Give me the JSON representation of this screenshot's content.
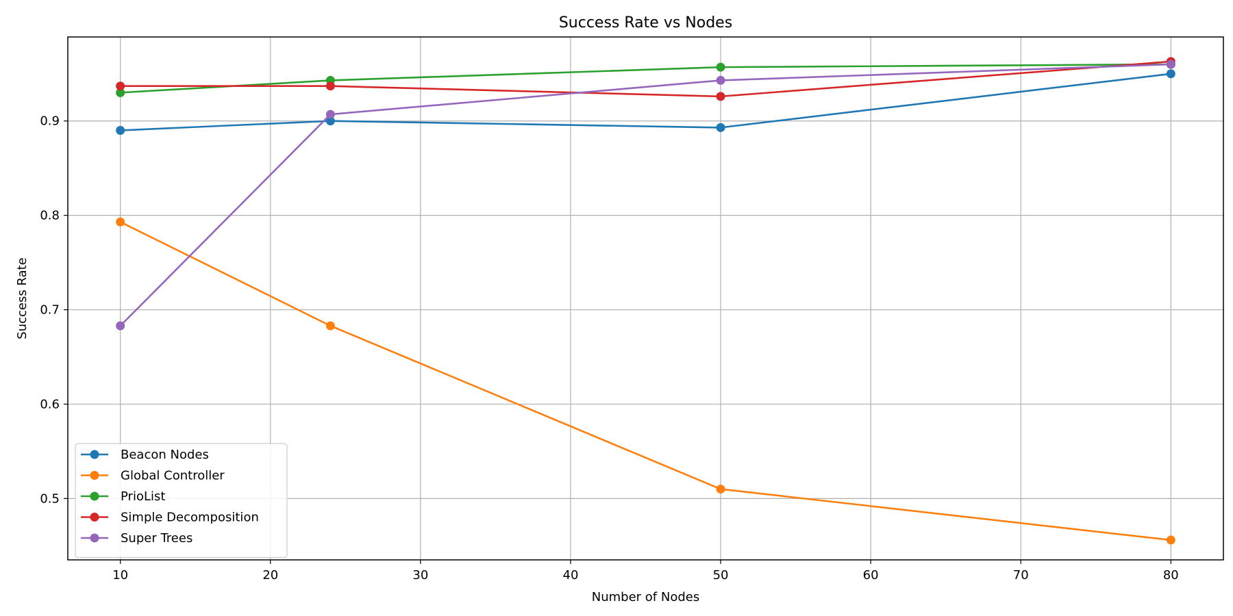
{
  "chart_data": {
    "type": "line",
    "title": "Success Rate vs Nodes",
    "xlabel": "Number of Nodes",
    "ylabel": "Success Rate",
    "x": [
      10,
      24,
      50,
      80
    ],
    "xlim": [
      6.5,
      83.5
    ],
    "ylim": [
      0.435,
      0.989
    ],
    "xticks": [
      10,
      20,
      30,
      40,
      50,
      60,
      70,
      80
    ],
    "yticks": [
      0.5,
      0.6,
      0.7,
      0.8,
      0.9
    ],
    "ytick_labels": [
      "0.5",
      "0.6",
      "0.7",
      "0.8",
      "0.9"
    ],
    "grid": true,
    "legend_position": "lower-left",
    "series": [
      {
        "name": "Beacon Nodes",
        "color": "#1f77b4",
        "values": [
          0.89,
          0.9,
          0.893,
          0.95
        ]
      },
      {
        "name": "Global Controller",
        "color": "#ff7f0e",
        "values": [
          0.793,
          0.683,
          0.51,
          0.456
        ]
      },
      {
        "name": "PrioList",
        "color": "#2ca02c",
        "values": [
          0.93,
          0.943,
          0.957,
          0.96
        ]
      },
      {
        "name": "Simple Decomposition",
        "color": "#d62728",
        "values": [
          0.937,
          0.937,
          0.926,
          0.963
        ]
      },
      {
        "name": "Super Trees",
        "color": "#9467bd",
        "values": [
          0.683,
          0.907,
          0.943,
          0.96
        ]
      }
    ]
  }
}
